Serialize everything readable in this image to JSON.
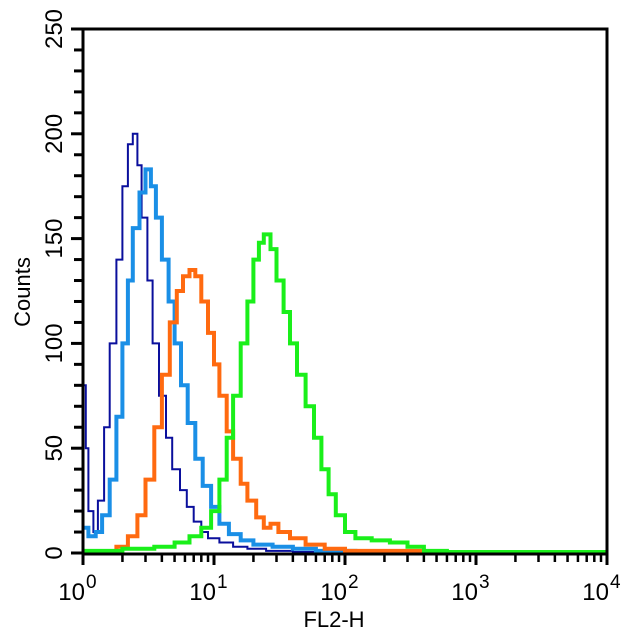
{
  "chart_data": {
    "type": "line",
    "subtype": "flow-cytometry-histogram",
    "title": "",
    "xlabel": "FL2-H",
    "ylabel": "Counts",
    "xscale": "log",
    "xlim": [
      1,
      10000
    ],
    "ylim": [
      0,
      250
    ],
    "x_ticks": [
      {
        "base": "10",
        "exp": "0",
        "value": 1
      },
      {
        "base": "10",
        "exp": "1",
        "value": 10
      },
      {
        "base": "10",
        "exp": "2",
        "value": 100
      },
      {
        "base": "10",
        "exp": "3",
        "value": 1000
      },
      {
        "base": "10",
        "exp": "4",
        "value": 10000
      }
    ],
    "y_ticks": [
      0,
      50,
      100,
      150,
      200,
      250
    ],
    "y_minor_step": 10,
    "grid": false,
    "legend": null,
    "series": [
      {
        "name": "dark-blue",
        "color": "#0a0f9c",
        "width": 2,
        "points": [
          [
            1.0,
            80
          ],
          [
            1.05,
            50
          ],
          [
            1.1,
            20
          ],
          [
            1.2,
            10
          ],
          [
            1.3,
            25
          ],
          [
            1.45,
            60
          ],
          [
            1.6,
            100
          ],
          [
            1.8,
            140
          ],
          [
            2.0,
            175
          ],
          [
            2.2,
            195
          ],
          [
            2.4,
            200
          ],
          [
            2.6,
            185
          ],
          [
            2.8,
            160
          ],
          [
            3.1,
            130
          ],
          [
            3.4,
            100
          ],
          [
            3.8,
            75
          ],
          [
            4.3,
            55
          ],
          [
            4.8,
            40
          ],
          [
            5.5,
            30
          ],
          [
            6.2,
            22
          ],
          [
            7.0,
            15
          ],
          [
            8.0,
            10
          ],
          [
            9.0,
            7
          ],
          [
            11,
            5
          ],
          [
            14,
            3
          ],
          [
            18,
            2
          ],
          [
            25,
            1
          ],
          [
            40,
            0.5
          ],
          [
            100,
            0
          ]
        ]
      },
      {
        "name": "light-blue",
        "color": "#1a8fe6",
        "width": 4,
        "points": [
          [
            1.0,
            12
          ],
          [
            1.1,
            8
          ],
          [
            1.25,
            10
          ],
          [
            1.4,
            18
          ],
          [
            1.6,
            35
          ],
          [
            1.8,
            65
          ],
          [
            2.0,
            100
          ],
          [
            2.2,
            130
          ],
          [
            2.4,
            155
          ],
          [
            2.7,
            172
          ],
          [
            3.0,
            183
          ],
          [
            3.3,
            175
          ],
          [
            3.6,
            160
          ],
          [
            4.0,
            140
          ],
          [
            4.5,
            120
          ],
          [
            5.0,
            100
          ],
          [
            5.6,
            80
          ],
          [
            6.3,
            62
          ],
          [
            7.2,
            45
          ],
          [
            8.2,
            32
          ],
          [
            9.5,
            22
          ],
          [
            11,
            14
          ],
          [
            13,
            9
          ],
          [
            16,
            6
          ],
          [
            20,
            4
          ],
          [
            28,
            3
          ],
          [
            40,
            2
          ],
          [
            60,
            1
          ],
          [
            90,
            1
          ],
          [
            120,
            0
          ]
        ]
      },
      {
        "name": "orange",
        "color": "#ff6a10",
        "width": 4,
        "points": [
          [
            1.5,
            0
          ],
          [
            1.8,
            3
          ],
          [
            2.2,
            8
          ],
          [
            2.6,
            18
          ],
          [
            3.0,
            35
          ],
          [
            3.5,
            60
          ],
          [
            4.0,
            85
          ],
          [
            4.6,
            110
          ],
          [
            5.2,
            125
          ],
          [
            5.8,
            132
          ],
          [
            6.5,
            135
          ],
          [
            7.2,
            132
          ],
          [
            8.0,
            120
          ],
          [
            9.0,
            105
          ],
          [
            10,
            90
          ],
          [
            11,
            75
          ],
          [
            12.5,
            58
          ],
          [
            14,
            45
          ],
          [
            16,
            33
          ],
          [
            18,
            25
          ],
          [
            21,
            17
          ],
          [
            24,
            12
          ],
          [
            27,
            14
          ],
          [
            31,
            10
          ],
          [
            38,
            7
          ],
          [
            50,
            4
          ],
          [
            70,
            2
          ],
          [
            100,
            1
          ],
          [
            150,
            1
          ],
          [
            250,
            1
          ],
          [
            400,
            0
          ]
        ]
      },
      {
        "name": "green",
        "color": "#1aef1a",
        "width": 4,
        "points": [
          [
            1.0,
            1
          ],
          [
            2.0,
            2
          ],
          [
            3.5,
            3
          ],
          [
            5.0,
            5
          ],
          [
            6.5,
            8
          ],
          [
            8.0,
            12
          ],
          [
            9.5,
            20
          ],
          [
            11,
            35
          ],
          [
            12.5,
            55
          ],
          [
            14,
            75
          ],
          [
            16,
            100
          ],
          [
            18,
            120
          ],
          [
            20,
            140
          ],
          [
            22,
            148
          ],
          [
            24,
            152
          ],
          [
            27,
            145
          ],
          [
            30,
            130
          ],
          [
            34,
            115
          ],
          [
            38,
            100
          ],
          [
            43,
            85
          ],
          [
            50,
            70
          ],
          [
            58,
            55
          ],
          [
            66,
            40
          ],
          [
            75,
            28
          ],
          [
            85,
            18
          ],
          [
            100,
            10
          ],
          [
            120,
            7
          ],
          [
            160,
            6
          ],
          [
            220,
            5
          ],
          [
            300,
            3
          ],
          [
            400,
            1
          ],
          [
            600,
            0.5
          ],
          [
            10000,
            0.5
          ]
        ]
      }
    ]
  },
  "axes": {
    "x_title": "FL2-H",
    "y_title": "Counts"
  }
}
